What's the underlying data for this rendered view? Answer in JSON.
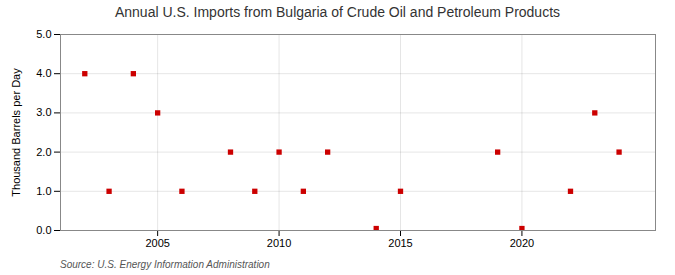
{
  "chart_data": {
    "type": "scatter",
    "title": "Annual U.S. Imports from Bulgaria of Crude Oil and Petroleum Products",
    "ylabel": "Thousand Barrels per Day",
    "source": "Source: U.S. Energy Information Administration",
    "x": [
      2002,
      2003,
      2004,
      2005,
      2006,
      2008,
      2009,
      2010,
      2011,
      2012,
      2014,
      2015,
      2019,
      2020,
      2022,
      2023,
      2024
    ],
    "values": [
      4.0,
      1.0,
      4.0,
      3.0,
      1.0,
      2.0,
      1.0,
      2.0,
      1.0,
      2.0,
      0.05,
      1.0,
      2.0,
      0.05,
      1.0,
      3.0,
      2.0
    ],
    "color": "#cc0000",
    "marker": "square",
    "xlim": [
      2001.0,
      2025.5
    ],
    "xticks": [
      2005,
      2010,
      2015,
      2020
    ],
    "ylim": [
      0.0,
      5.0
    ],
    "yticks": [
      {
        "value": 0.0,
        "label": "0.0"
      },
      {
        "value": 1.0,
        "label": "1.0"
      },
      {
        "value": 2.0,
        "label": "2.0"
      },
      {
        "value": 3.0,
        "label": "3.0"
      },
      {
        "value": 4.0,
        "label": "4.0"
      },
      {
        "value": 5.0,
        "label": "5.0"
      }
    ],
    "grid": true
  }
}
